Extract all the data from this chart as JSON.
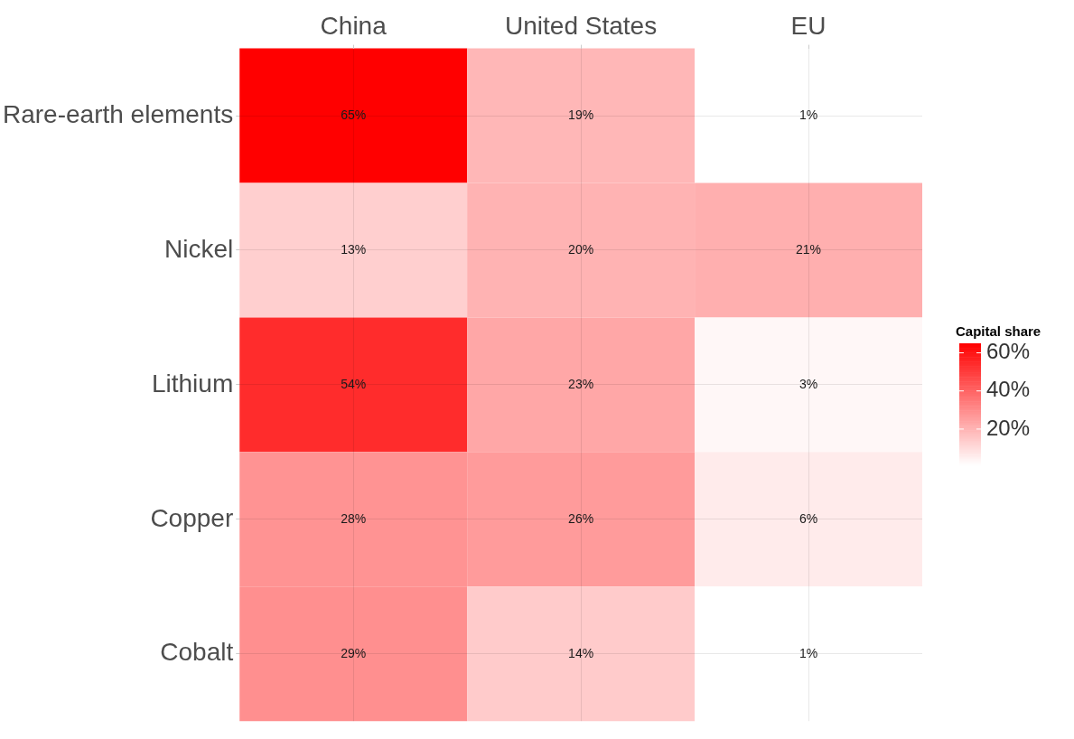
{
  "chart_data": {
    "type": "heatmap",
    "clabel": "Capital share",
    "categories": [
      "China",
      "United States",
      "EU"
    ],
    "y_categories": [
      "Rare-earth elements",
      "Nickel",
      "Lithium",
      "Copper",
      "Cobalt"
    ],
    "cells": [
      [
        65,
        19,
        1
      ],
      [
        13,
        20,
        21
      ],
      [
        54,
        23,
        3
      ],
      [
        28,
        26,
        6
      ],
      [
        29,
        14,
        1
      ]
    ],
    "cell_labels": [
      [
        "65%",
        "19%",
        "1%"
      ],
      [
        "13%",
        "20%",
        "21%"
      ],
      [
        "54%",
        "23%",
        "3%"
      ],
      [
        "28%",
        "26%",
        "6%"
      ],
      [
        "29%",
        "14%",
        "1%"
      ]
    ],
    "colors": [
      "#ffffff",
      "#ff0000"
    ],
    "clim": [
      1,
      65
    ],
    "cticks": [
      {
        "value": 20,
        "label": "20%"
      },
      {
        "value": 40,
        "label": "40%"
      },
      {
        "value": 60,
        "label": "60%"
      }
    ],
    "grid": true
  }
}
